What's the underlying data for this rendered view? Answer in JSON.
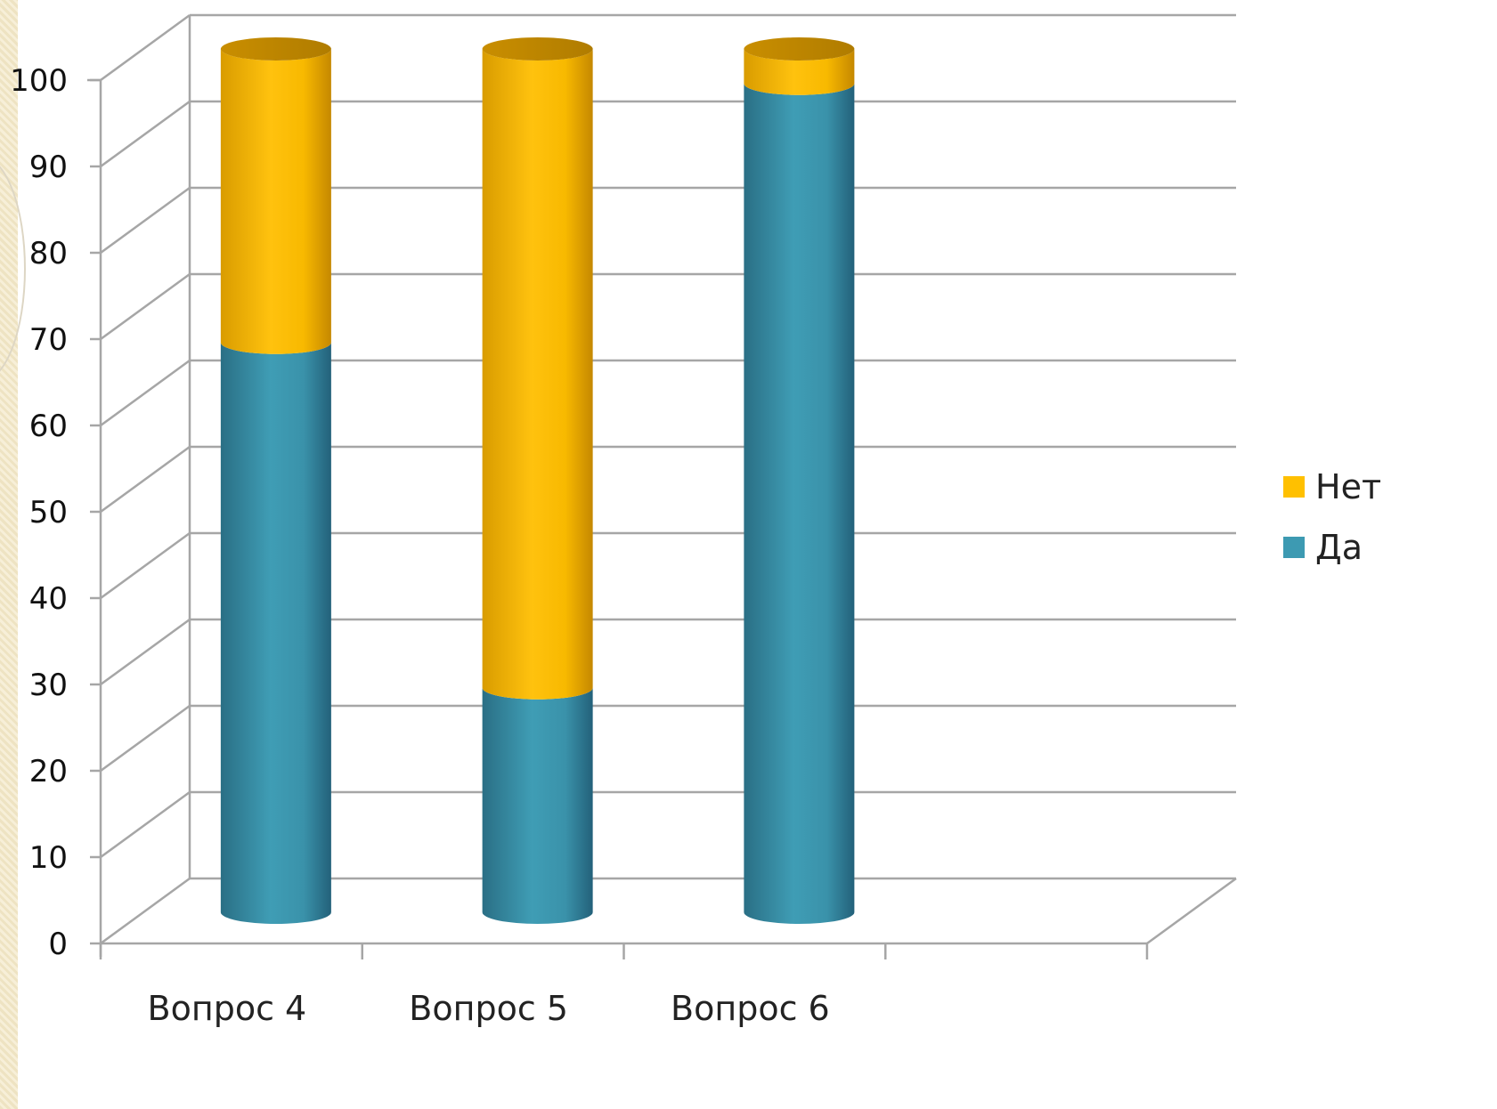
{
  "chart_data": {
    "type": "bar",
    "stacked": true,
    "style": "3d-cylinder",
    "categories": [
      "Вопрос 4",
      "Вопрос 5",
      "Вопрос 6"
    ],
    "series": [
      {
        "name": "Да",
        "values": [
          66,
          26,
          96
        ],
        "color": "#3d9ab2"
      },
      {
        "name": "Нет",
        "values": [
          34,
          74,
          4
        ],
        "color": "#ffc000"
      }
    ],
    "y_ticks": [
      "0",
      "10",
      "20",
      "30",
      "40",
      "50",
      "60",
      "70",
      "80",
      "90",
      "100"
    ],
    "ylim": [
      0,
      100
    ],
    "grid": true,
    "legend_position": "right",
    "legend_order": [
      "Нет",
      "Да"
    ]
  }
}
